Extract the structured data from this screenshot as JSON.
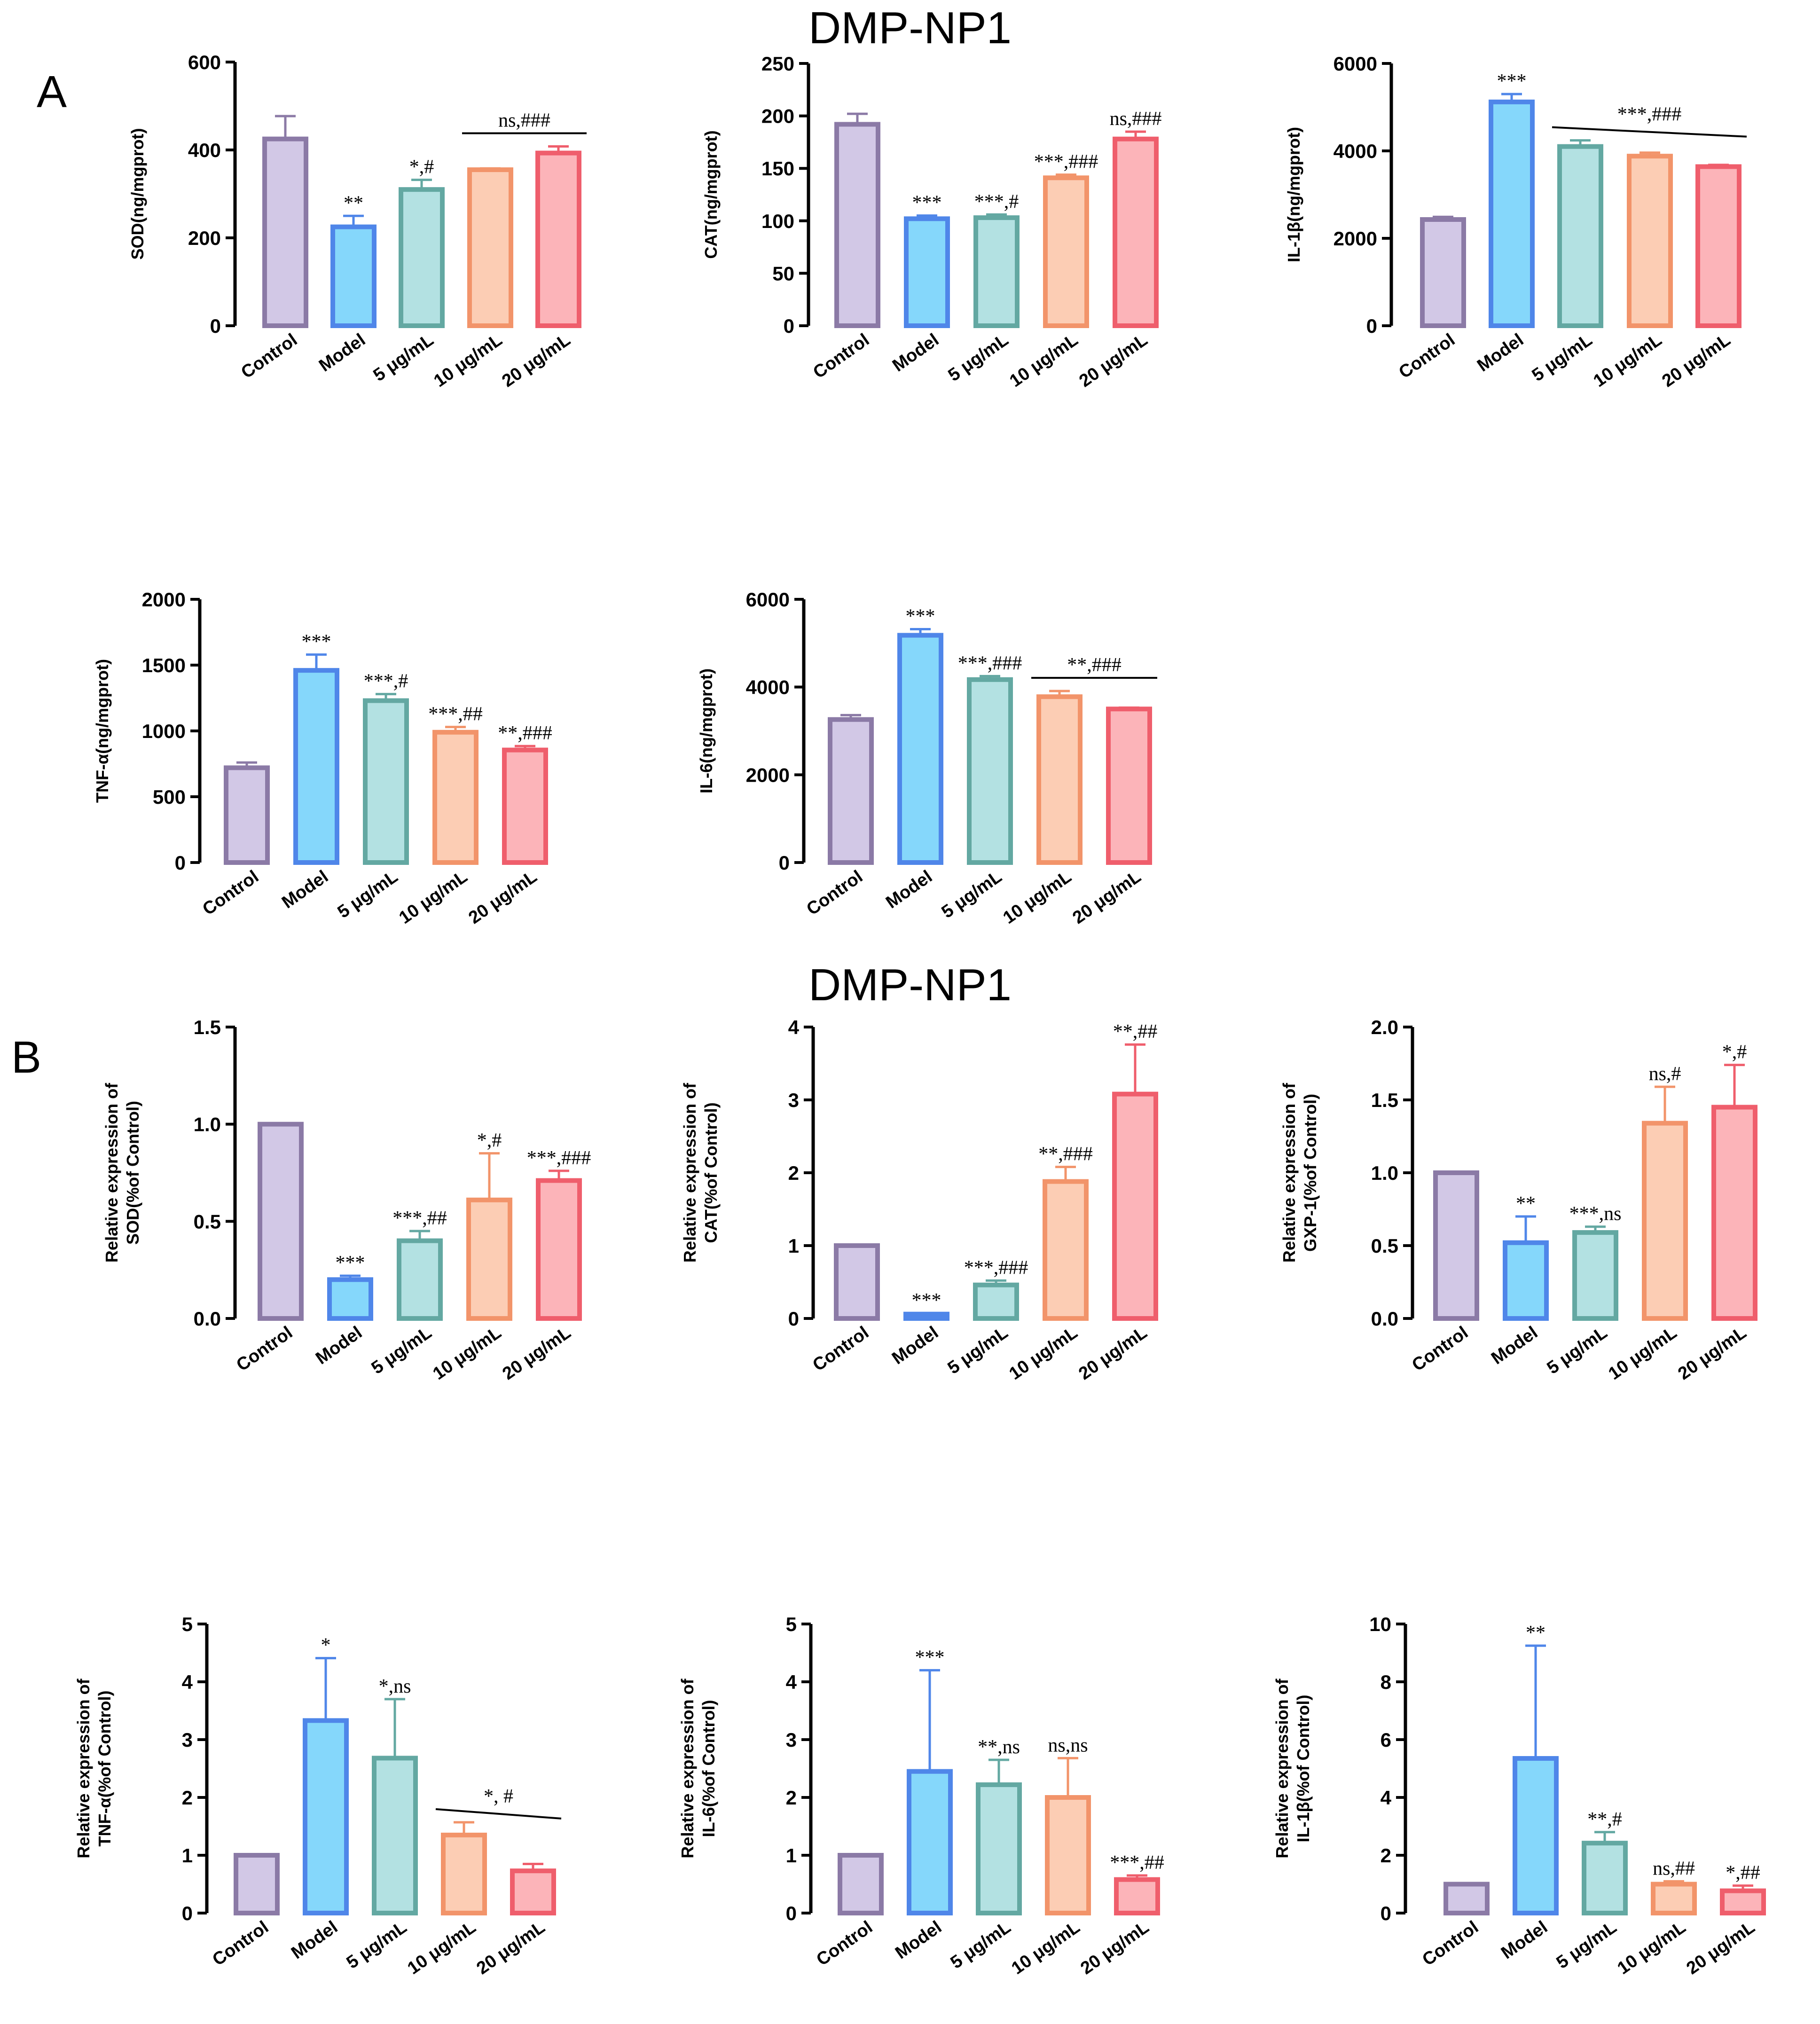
{
  "figure": {
    "section_A_title": "DMP-NP1",
    "section_B_title": "DMP-NP1",
    "panel_A_letter": "A",
    "panel_B_letter": "B"
  },
  "colors": {
    "Control": {
      "stroke": "#8b7aa6",
      "fill": "#d2c8e6"
    },
    "Model": {
      "stroke": "#4f86e9",
      "fill": "#85d7fb"
    },
    "5 μg/mL": {
      "stroke": "#63a8a2",
      "fill": "#b3e1e2"
    },
    "10 μg/mL": {
      "stroke": "#f2946a",
      "fill": "#fccdb4"
    },
    "20 μg/mL": {
      "stroke": "#ef5e6c",
      "fill": "#fcb4b9"
    }
  },
  "chart_data": [
    {
      "id": "A1",
      "type": "bar",
      "categories": [
        "Control",
        "Model",
        "5 μg/mL",
        "10 μg/mL",
        "20 μg/mL"
      ],
      "values": [
        425,
        225,
        310,
        355,
        393
      ],
      "errors": [
        52,
        25,
        22,
        3,
        15
      ],
      "ylabel": "SOD(ng/mgprot)",
      "ylim": [
        0,
        600
      ],
      "yticks": [
        "0",
        "200",
        "400",
        "600"
      ],
      "annotations": [
        "",
        "**",
        "*,#",
        "",
        ""
      ],
      "bracket": {
        "from": 3,
        "to": 4,
        "label": "ns,###"
      }
    },
    {
      "id": "A2",
      "type": "bar",
      "categories": [
        "Control",
        "Model",
        "5 μg/mL",
        "10 μg/mL",
        "20 μg/mL"
      ],
      "values": [
        192,
        102,
        103,
        141,
        178
      ],
      "errors": [
        10,
        3,
        3,
        3,
        7
      ],
      "ylabel": "CAT(ng/mgprot)",
      "ylim": [
        0,
        250
      ],
      "yticks": [
        "0",
        "50",
        "100",
        "150",
        "200",
        "250"
      ],
      "annotations": [
        "",
        "***",
        "***,#",
        "***,###",
        "ns,###"
      ]
    },
    {
      "id": "A3",
      "type": "bar",
      "categories": [
        "Control",
        "Model",
        "5 μg/mL",
        "10 μg/mL",
        "20 μg/mL"
      ],
      "values": [
        2430,
        5120,
        4100,
        3880,
        3640
      ],
      "errors": [
        60,
        180,
        140,
        80,
        40
      ],
      "ylabel": "IL-1β(ng/mgprot)",
      "ylim": [
        0,
        6000
      ],
      "yticks": [
        "0",
        "2000",
        "4000",
        "6000"
      ],
      "annotations": [
        "",
        "***",
        "",
        "",
        ""
      ],
      "bracket": {
        "from": 2,
        "to": 4,
        "label": "***,###",
        "slant": true
      }
    },
    {
      "id": "A4",
      "type": "bar",
      "categories": [
        "Control",
        "Model",
        "5 μg/mL",
        "10 μg/mL",
        "20 μg/mL"
      ],
      "values": [
        720,
        1460,
        1230,
        990,
        855
      ],
      "errors": [
        40,
        120,
        50,
        40,
        30
      ],
      "ylabel": "TNF-α(ng/mgprot)",
      "ylim": [
        0,
        2000
      ],
      "yticks": [
        "0",
        "500",
        "1000",
        "1500",
        "2000"
      ],
      "annotations": [
        "",
        "***",
        "***,#",
        "***,##",
        "**,###"
      ]
    },
    {
      "id": "A5",
      "type": "bar",
      "categories": [
        "Control",
        "Model",
        "5 μg/mL",
        "10 μg/mL",
        "20 μg/mL"
      ],
      "values": [
        3260,
        5180,
        4170,
        3780,
        3500
      ],
      "errors": [
        100,
        140,
        80,
        130,
        30
      ],
      "ylabel": "IL-6(ng/mgprot)",
      "ylim": [
        0,
        6000
      ],
      "yticks": [
        "0",
        "2000",
        "4000",
        "6000"
      ],
      "annotations": [
        "",
        "***",
        "***,###",
        "",
        ""
      ],
      "bracket": {
        "from": 3,
        "to": 4,
        "label": "**,###"
      }
    },
    {
      "id": "B1",
      "type": "bar",
      "categories": [
        "Control",
        "Model",
        "5 μg/mL",
        "10 μg/mL",
        "20 μg/mL"
      ],
      "values": [
        1.0,
        0.2,
        0.4,
        0.61,
        0.71
      ],
      "errors": [
        0,
        0.02,
        0.05,
        0.24,
        0.05
      ],
      "ylabel": [
        "Relative expression of",
        "SOD(%of Control)"
      ],
      "ylim": [
        0,
        1.5
      ],
      "yticks": [
        "0.0",
        "0.5",
        "1.0",
        "1.5"
      ],
      "annotations": [
        "",
        "***",
        "***,##",
        "*,#",
        "***,###"
      ]
    },
    {
      "id": "B2",
      "type": "bar",
      "categories": [
        "Control",
        "Model",
        "5 μg/mL",
        "10 μg/mL",
        "20 μg/mL"
      ],
      "values": [
        1.0,
        0.06,
        0.46,
        1.88,
        3.08
      ],
      "errors": [
        0,
        0.01,
        0.06,
        0.2,
        0.68
      ],
      "ylabel": [
        "Relative expression of",
        "CAT(%of Control)"
      ],
      "ylim": [
        0,
        4
      ],
      "yticks": [
        "0",
        "1",
        "2",
        "3",
        "4"
      ],
      "annotations": [
        "",
        "***",
        "***,###",
        "**,###",
        "**,##"
      ]
    },
    {
      "id": "B3",
      "type": "bar",
      "categories": [
        "Control",
        "Model",
        "5 μg/mL",
        "10 μg/mL",
        "20 μg/mL"
      ],
      "values": [
        1.0,
        0.52,
        0.59,
        1.34,
        1.45
      ],
      "errors": [
        0,
        0.18,
        0.04,
        0.25,
        0.29
      ],
      "ylabel": [
        "Relative expression of",
        "GXP-1(%of Control)"
      ],
      "ylim": [
        0,
        2.0
      ],
      "yticks": [
        "0.0",
        "0.5",
        "1.0",
        "1.5",
        "2.0"
      ],
      "annotations": [
        "",
        "**",
        "***,ns",
        "ns,#",
        "*,#"
      ]
    },
    {
      "id": "B4",
      "type": "bar",
      "categories": [
        "Control",
        "Model",
        "5 μg/mL",
        "10 μg/mL",
        "20 μg/mL"
      ],
      "values": [
        1.0,
        3.33,
        2.68,
        1.35,
        0.73
      ],
      "errors": [
        0,
        1.08,
        1.02,
        0.22,
        0.12
      ],
      "ylabel": [
        "Relative expression of",
        "TNF-α(%of Control)"
      ],
      "ylim": [
        0,
        5
      ],
      "yticks": [
        "0",
        "1",
        "2",
        "3",
        "4",
        "5"
      ],
      "annotations": [
        "",
        "*",
        "*,ns",
        "",
        ""
      ],
      "bracket": {
        "from": 3,
        "to": 4,
        "label": "*, #",
        "slant": true
      }
    },
    {
      "id": "B5",
      "type": "bar",
      "categories": [
        "Control",
        "Model",
        "5 μg/mL",
        "10 μg/mL",
        "20 μg/mL"
      ],
      "values": [
        1.0,
        2.45,
        2.22,
        2.0,
        0.58
      ],
      "errors": [
        0,
        1.75,
        0.43,
        0.68,
        0.07
      ],
      "ylabel": [
        "Relative expression of",
        "IL-6(%of Control)"
      ],
      "ylim": [
        0,
        5
      ],
      "yticks": [
        "0",
        "1",
        "2",
        "3",
        "4",
        "5"
      ],
      "annotations": [
        "",
        "***",
        "**,ns",
        "ns,ns",
        "***,##"
      ]
    },
    {
      "id": "B6",
      "type": "bar",
      "categories": [
        "Control",
        "Model",
        "5 μg/mL",
        "10 μg/mL",
        "20 μg/mL"
      ],
      "values": [
        1.0,
        5.35,
        2.42,
        1.0,
        0.77
      ],
      "errors": [
        0,
        3.9,
        0.38,
        0.1,
        0.18
      ],
      "ylabel": [
        "Relative expression of",
        "IL-1β(%of Control)"
      ],
      "ylim": [
        0,
        10
      ],
      "yticks": [
        "0",
        "2",
        "4",
        "6",
        "8",
        "10"
      ],
      "annotations": [
        "",
        "**",
        "**,#",
        "ns,##",
        "*,##"
      ]
    }
  ]
}
